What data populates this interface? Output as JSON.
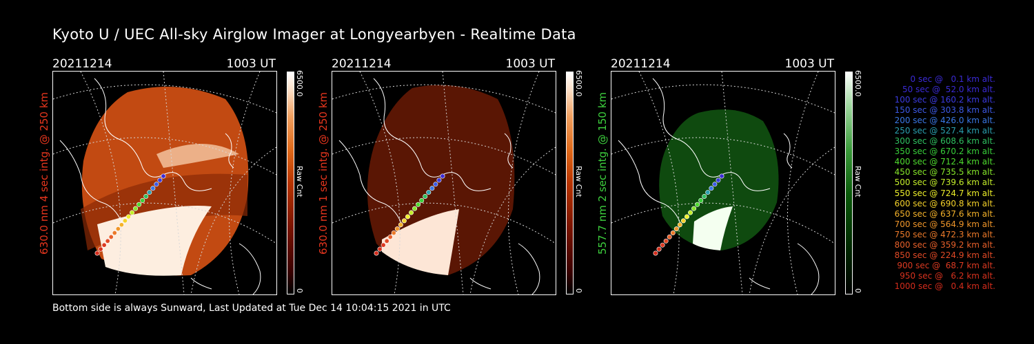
{
  "title": "Kyoto U / UEC All-sky Airglow Imager at Longyearbyen - Realtime Data",
  "footer": "Bottom side is always Sunward, Last Updated at Tue Dec 14 10:04:15 2021 in UTC",
  "panels": [
    {
      "date": "20211214",
      "time": "1003 UT",
      "label": "630.0 nm 4 sec intg. @ 250 km",
      "label_color": "#e8361e",
      "cbar_max": "6500.0",
      "cbar_min": "0",
      "cbar_unit": "Raw Cnt",
      "palette": "red-hot"
    },
    {
      "date": "20211214",
      "time": "1003 UT",
      "label": "630.0 nm 1 sec intg. @ 250 km",
      "label_color": "#e8361e",
      "cbar_max": "6500.0",
      "cbar_min": "0",
      "cbar_unit": "Raw Cnt",
      "palette": "red-hot"
    },
    {
      "date": "20211214",
      "time": "1003 UT",
      "label": "557.7 nm 2 sec intg. @ 150 km",
      "label_color": "#3ed23e",
      "cbar_max": "6500.0",
      "cbar_min": "0",
      "cbar_unit": "Raw Cnt",
      "palette": "green"
    }
  ],
  "legend": [
    {
      "text": "0 sec @   0.1 km alt.",
      "color": "#3b2bd6"
    },
    {
      "text": "50 sec @  52.0 km alt.",
      "color": "#3b2bd6"
    },
    {
      "text": "100 sec @ 160.2 km alt.",
      "color": "#3b3be0"
    },
    {
      "text": "150 sec @ 303.8 km alt.",
      "color": "#3d5ae6"
    },
    {
      "text": "200 sec @ 426.0 km alt.",
      "color": "#3a78e6"
    },
    {
      "text": "250 sec @ 527.4 km alt.",
      "color": "#2aa0b0"
    },
    {
      "text": "300 sec @ 608.6 km alt.",
      "color": "#2fc060"
    },
    {
      "text": "350 sec @ 670.2 km alt.",
      "color": "#38cf3a"
    },
    {
      "text": "400 sec @ 712.4 km alt.",
      "color": "#4fdc2e"
    },
    {
      "text": "450 sec @ 735.5 km alt.",
      "color": "#86e62a"
    },
    {
      "text": "500 sec @ 739.6 km alt.",
      "color": "#c4ee2a"
    },
    {
      "text": "550 sec @ 724.7 km alt.",
      "color": "#eef02a"
    },
    {
      "text": "600 sec @ 690.8 km alt.",
      "color": "#f5d22a"
    },
    {
      "text": "650 sec @ 637.6 km alt.",
      "color": "#f4b22a"
    },
    {
      "text": "700 sec @ 564.9 km alt.",
      "color": "#f0962a"
    },
    {
      "text": "750 sec @ 472.3 km alt.",
      "color": "#ec7a2a"
    },
    {
      "text": "800 sec @ 359.2 km alt.",
      "color": "#e8602a"
    },
    {
      "text": "850 sec @ 224.9 km alt.",
      "color": "#e24a26"
    },
    {
      "text": "900 sec @  68.7 km alt.",
      "color": "#dc3a22"
    },
    {
      "text": "950 sec @   6.2 km alt.",
      "color": "#d8321e"
    },
    {
      "text": "1000 sec @   0.4 km alt.",
      "color": "#d42c1c"
    }
  ]
}
